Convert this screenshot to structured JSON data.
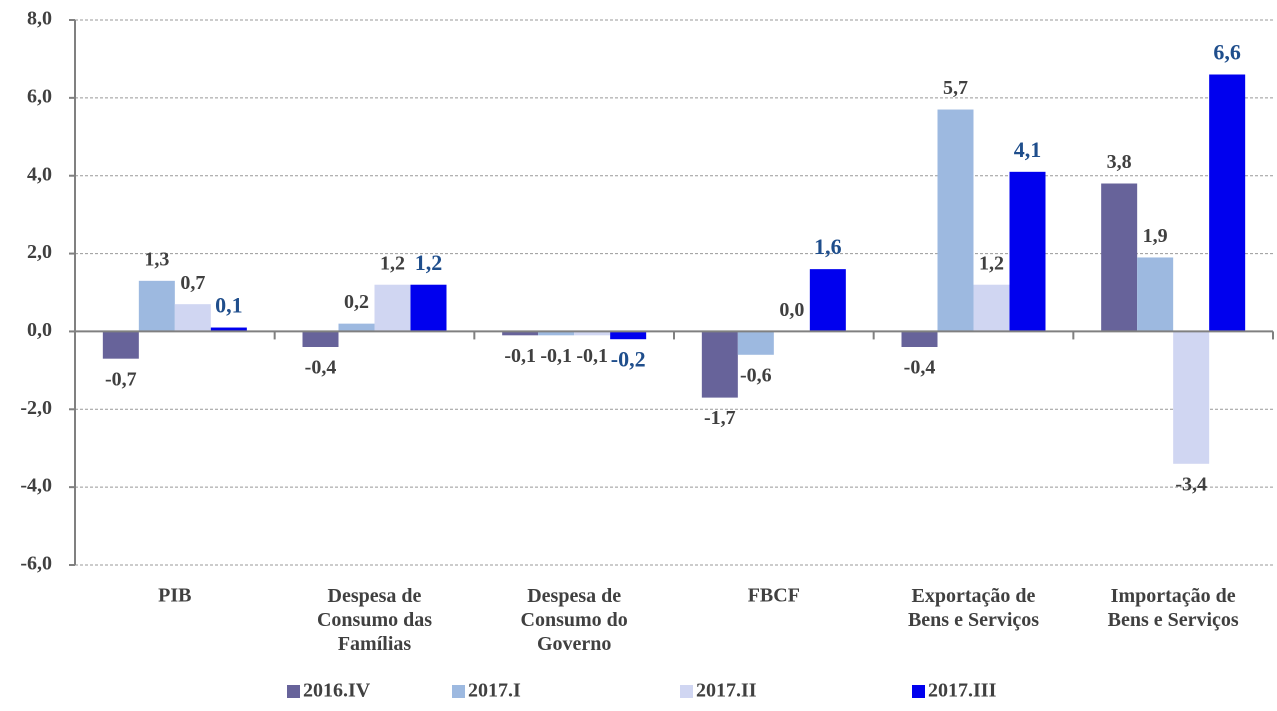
{
  "chart_data": {
    "type": "bar",
    "categories": [
      "PIB",
      "Despesa de\nConsumo das\nFamílias",
      "Despesa de\nConsumo do\nGoverno",
      "FBCF",
      "Exportação de\nBens e Serviços",
      "Importação de\nBens e Serviços"
    ],
    "series": [
      {
        "name": "2016.IV",
        "color": "#67639a",
        "label_color": "#404040",
        "values": [
          -0.7,
          -0.4,
          -0.1,
          -1.7,
          -0.4,
          3.8
        ],
        "value_labels": [
          "-0,7",
          "-0,4",
          "-0,1",
          "-1,7",
          "-0,4",
          "3,8"
        ]
      },
      {
        "name": "2017.I",
        "color": "#9db9e0",
        "label_color": "#404040",
        "values": [
          1.3,
          0.2,
          -0.1,
          -0.6,
          5.7,
          1.9
        ],
        "value_labels": [
          "1,3",
          "0,2",
          "-0,1",
          "-0,6",
          "5,7",
          "1,9"
        ]
      },
      {
        "name": "2017.II",
        "color": "#d0d6f2",
        "label_color": "#404040",
        "values": [
          0.7,
          1.2,
          -0.1,
          0.0,
          1.2,
          -3.4
        ],
        "value_labels": [
          "0,7",
          "1,2",
          "-0,1",
          "0,0",
          "1,2",
          "-3,4"
        ]
      },
      {
        "name": "2017.III",
        "color": "#0000ee",
        "label_color": "#1f4e8c",
        "values": [
          0.1,
          1.2,
          -0.2,
          1.6,
          4.1,
          6.6
        ],
        "value_labels": [
          "0,1",
          "1,2",
          "-0,2",
          "1,6",
          "4,1",
          "6,6"
        ]
      }
    ],
    "ylim": [
      -6,
      8
    ],
    "yticks": [
      {
        "value": -6,
        "label": "-6,0"
      },
      {
        "value": -4,
        "label": "-4,0"
      },
      {
        "value": -2,
        "label": "-2,0"
      },
      {
        "value": 0,
        "label": "0,0"
      },
      {
        "value": 2,
        "label": "2,0"
      },
      {
        "value": 4,
        "label": "4,0"
      },
      {
        "value": 6,
        "label": "6,0"
      },
      {
        "value": 8,
        "label": "8,0"
      }
    ],
    "grid": true,
    "legend": "bottom"
  }
}
